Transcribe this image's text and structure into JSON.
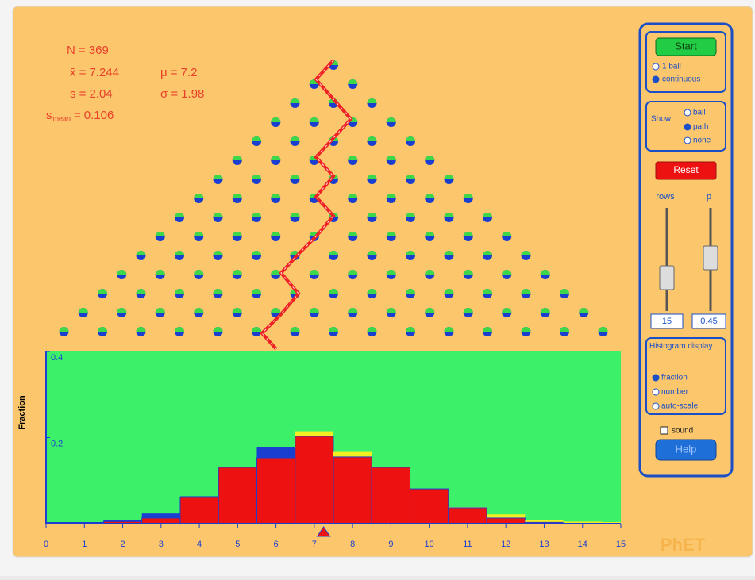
{
  "stats": [
    {
      "label": "N =",
      "value": 369
    },
    {
      "label": "x̄ =",
      "value": 7.244
    },
    {
      "label": "s =",
      "value": 2.04
    },
    {
      "label": "s",
      "sub": "mean",
      "eq": "=",
      "value": 0.106
    },
    {
      "label": "μ =",
      "value": 7.2
    },
    {
      "label": "σ =",
      "value": 1.98
    }
  ],
  "chart_data": {
    "type": "histogram",
    "y_label": "Fraction",
    "x": [
      0,
      1,
      2,
      3,
      4,
      5,
      6,
      7,
      8,
      9,
      10,
      11,
      12,
      13,
      14,
      15
    ],
    "values": [
      0,
      0,
      0.005,
      0.013,
      0.061,
      0.131,
      0.153,
      0.203,
      0.155,
      0.131,
      0.081,
      0.037,
      0.013,
      0.003,
      0,
      0
    ],
    "ideal_values": [
      0,
      0,
      0.005,
      0.02,
      0.06,
      0.12,
      0.174,
      0.211,
      0.163,
      0.125,
      0.075,
      0.035,
      0.018,
      0.005,
      0.001,
      0
    ],
    "color": "#ee1111",
    "ideal_color": "#f2ee22",
    "background": "#3cf06a",
    "xlim": [
      0,
      15
    ],
    "ylim": [
      0,
      0.4
    ],
    "xticks": [
      0,
      1,
      2,
      3,
      4,
      5,
      6,
      7,
      8,
      9,
      10,
      11,
      12,
      13,
      14,
      15
    ],
    "yticks": [
      0.2,
      0.4
    ],
    "mean_marker": 7.244
  },
  "controls": {
    "start": "Start",
    "one_ball": "1 ball",
    "continuous": "continuous",
    "show": "Show",
    "show_ball": "ball",
    "show_path": "path",
    "show_none": "none",
    "reset": "Reset",
    "rows_label": "rows",
    "p_label": "p",
    "rows_value": "15",
    "p_value": "0.45",
    "histogram_display": "Histogram display",
    "fraction": "fraction",
    "number": "number",
    "auto_scale": "auto-scale",
    "sound": "sound",
    "help": "Help"
  },
  "logo": "PhET"
}
